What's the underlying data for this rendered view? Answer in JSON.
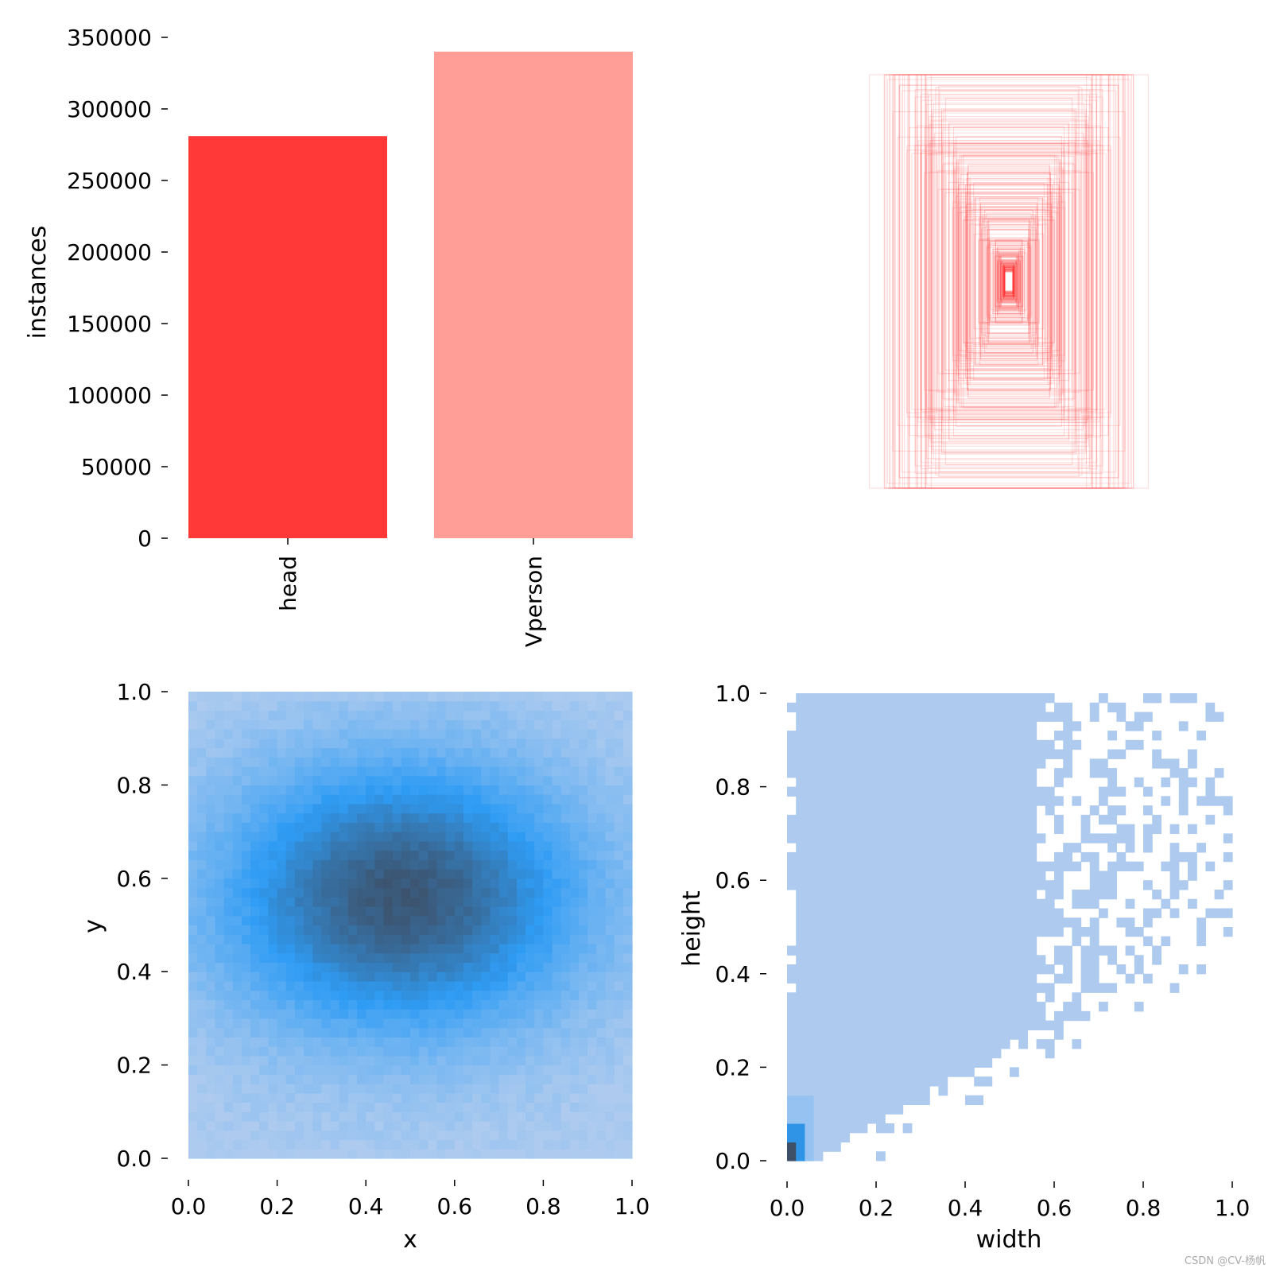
{
  "colors": {
    "head": "#ff3838",
    "vperson": "#ff9d97",
    "hist_light": "#aecbef",
    "hist_mid": "#2f9cf4",
    "hist_dark": "#3d5068",
    "box_stroke": "#ff3838"
  },
  "watermark": "CSDN @CV-杨帆",
  "chart_data": [
    {
      "id": "class-counts",
      "type": "bar",
      "categories": [
        "head",
        "Vperson"
      ],
      "values": [
        281000,
        340000
      ],
      "ylabel": "instances",
      "xlabel": "",
      "ylim": [
        0,
        350000
      ],
      "yticks": [
        0,
        50000,
        100000,
        150000,
        200000,
        250000,
        300000,
        350000
      ],
      "ytick_labels": [
        "0",
        "50000",
        "100000",
        "150000",
        "200000",
        "250000",
        "300000",
        "350000"
      ]
    },
    {
      "id": "box-overlay",
      "type": "scatter",
      "title": "",
      "description_values": {
        "box_width_range": [
          0.02,
          1.0
        ],
        "box_height_range": [
          0.02,
          1.0
        ]
      }
    },
    {
      "id": "xy-hist",
      "type": "heatmap",
      "xlabel": "x",
      "ylabel": "y",
      "xlim": [
        0,
        1
      ],
      "ylim": [
        0,
        1
      ],
      "xticks": [
        "0.0",
        "0.2",
        "0.4",
        "0.6",
        "0.8",
        "1.0"
      ],
      "yticks": [
        "0.0",
        "0.2",
        "0.4",
        "0.6",
        "0.8",
        "1.0"
      ],
      "peak": [
        0.48,
        0.56
      ]
    },
    {
      "id": "wh-hist",
      "type": "heatmap",
      "xlabel": "width",
      "ylabel": "height",
      "xlim": [
        0,
        1
      ],
      "ylim": [
        0,
        1
      ],
      "xticks": [
        "0.0",
        "0.2",
        "0.4",
        "0.6",
        "0.8",
        "1.0"
      ],
      "yticks": [
        "0.0",
        "0.2",
        "0.4",
        "0.6",
        "0.8",
        "1.0"
      ],
      "peak": [
        0.02,
        0.05
      ]
    }
  ]
}
